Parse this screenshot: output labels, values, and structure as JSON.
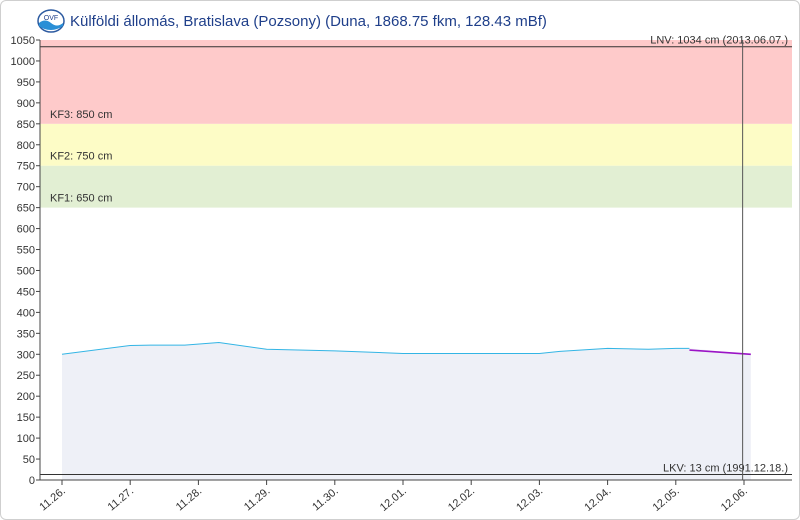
{
  "title": "Külföldi állomás, Bratislava (Pozsony) (Duna, 1868.75 fkm, 128.43 mBf)",
  "logo": {
    "name": "ovf-logo",
    "text": "OVF"
  },
  "chart_data": {
    "type": "line",
    "ylim": [
      0,
      1050
    ],
    "y_ticks": [
      0,
      50,
      100,
      150,
      200,
      250,
      300,
      350,
      400,
      450,
      500,
      550,
      600,
      650,
      700,
      750,
      800,
      850,
      900,
      950,
      1000,
      1050
    ],
    "x_categories": [
      "11.26.",
      "11.27.",
      "11.28.",
      "11.29.",
      "11.30.",
      "12.01.",
      "12.02.",
      "12.03.",
      "12.04.",
      "12.05.",
      "12.06."
    ],
    "bands": [
      {
        "label": "KF1: 650 cm",
        "from": 650,
        "to": 750,
        "color": "#e2efd3"
      },
      {
        "label": "KF2: 750 cm",
        "from": 750,
        "to": 850,
        "color": "#fdfcc6"
      },
      {
        "label": "KF3: 850 cm",
        "from": 850,
        "to": 1050,
        "color": "#fecaca"
      }
    ],
    "reference_lines": [
      {
        "label": "LNV: 1034 cm (2013.06.07.)",
        "value": 1034
      },
      {
        "label": "LKV: 13 cm (1991.12.18.)",
        "value": 13
      }
    ],
    "series": [
      {
        "color": "#33b5e5",
        "x": [
          0,
          1,
          1.3,
          1.8,
          2.3,
          3,
          4,
          5,
          6,
          7,
          7.3,
          8,
          8.6,
          9,
          9.2
        ],
        "y": [
          300,
          321,
          322,
          322,
          328,
          312,
          308,
          302,
          302,
          302,
          307,
          314,
          312,
          314,
          314
        ]
      },
      {
        "color": "#9b14c6",
        "x": [
          9.2,
          10.1
        ],
        "y": [
          310,
          300
        ]
      }
    ],
    "area_under_series": true,
    "cursor_x": 9.98,
    "grid": false
  }
}
